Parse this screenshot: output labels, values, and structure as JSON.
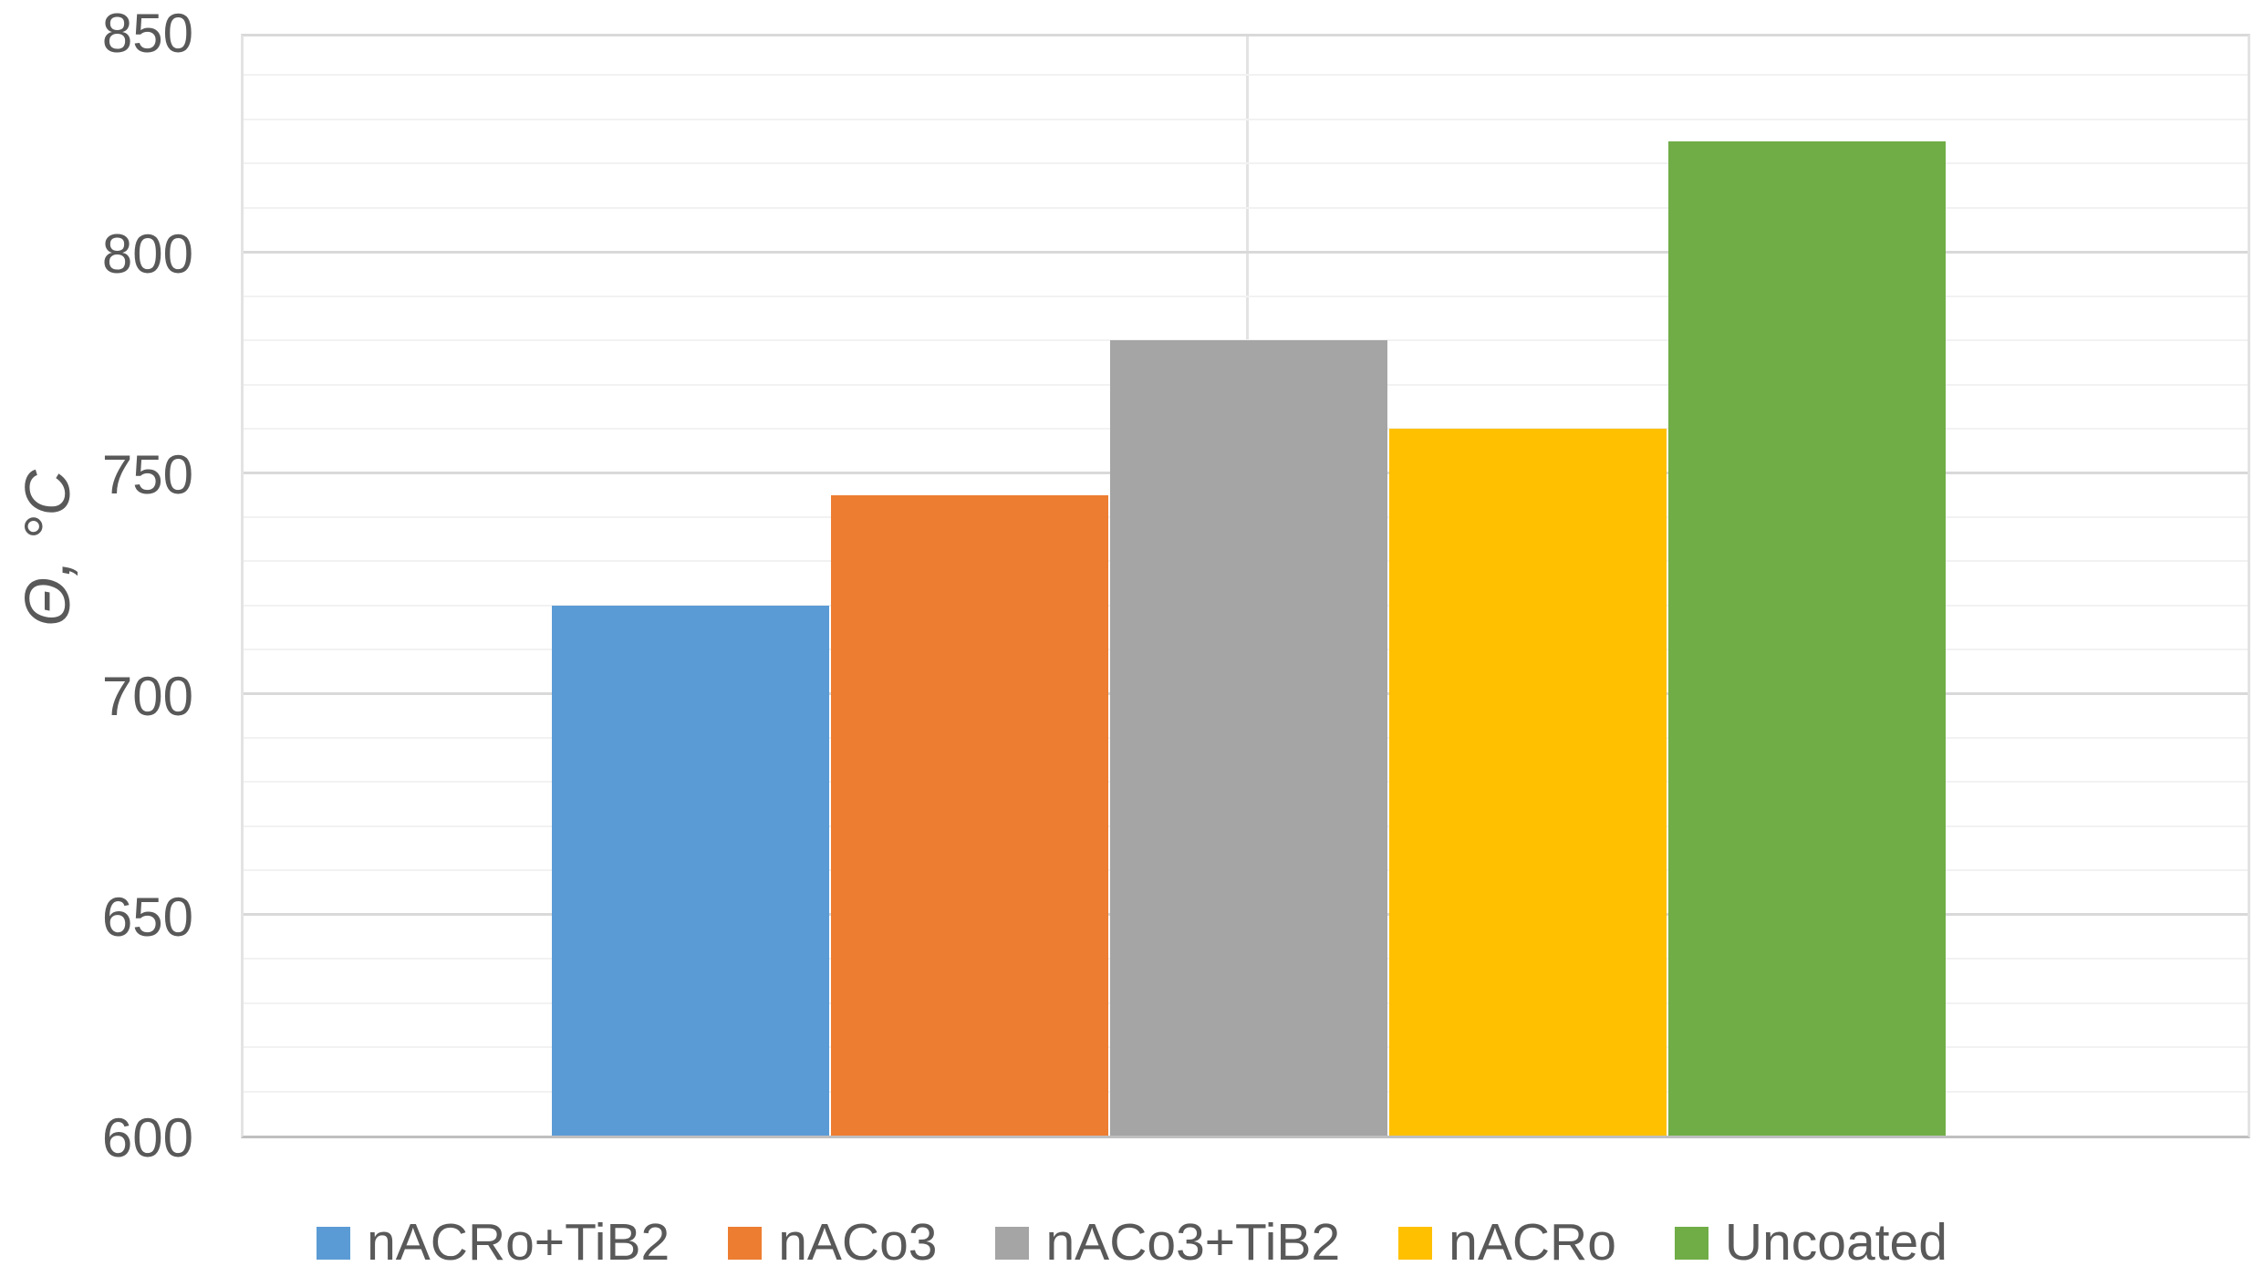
{
  "chart_data": {
    "type": "bar",
    "categories": [
      "nACRo+TiB2",
      "nACo3",
      "nACo3+TiB2",
      "nACRo",
      "Uncoated"
    ],
    "values": [
      720,
      745,
      780,
      760,
      825
    ],
    "colors": [
      "#5B9BD5",
      "#ED7D31",
      "#A5A5A5",
      "#FFC000",
      "#70AD47"
    ],
    "title": "",
    "xlabel": "",
    "ylabel": "Θ, °C",
    "ylim": [
      600,
      850
    ],
    "ytick_step": 50,
    "yticks": [
      850,
      800,
      750,
      700,
      650,
      600
    ],
    "minor_gridline_step": 10,
    "grid": "horizontal major+minor, single vertical center line",
    "legend_position": "bottom"
  },
  "y_axis": {
    "title": "Θ, °C",
    "ticks": [
      "850",
      "800",
      "750",
      "700",
      "650",
      "600"
    ]
  },
  "legend": {
    "items": [
      {
        "label": "nACRo+TiB2",
        "color": "#5B9BD5"
      },
      {
        "label": "nACo3",
        "color": "#ED7D31"
      },
      {
        "label": "nACo3+TiB2",
        "color": "#A5A5A5"
      },
      {
        "label": "nACRo",
        "color": "#FFC000"
      },
      {
        "label": "Uncoated",
        "color": "#70AD47"
      }
    ]
  },
  "style_colors": {
    "text": "#595959",
    "minor_gridline": "#F2F2F2",
    "major_gridline": "#D9D9D9",
    "axis_line": "#BFBFBF"
  }
}
